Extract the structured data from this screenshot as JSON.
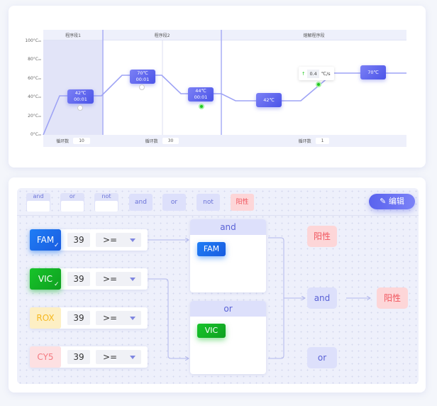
{
  "program": {
    "y_ticks": [
      "100°C",
      "80°C",
      "60°C",
      "40°C",
      "20°C",
      "0°C"
    ],
    "stages": [
      {
        "title": "程序段1",
        "cycle_label": "循环数",
        "cycles": "10"
      },
      {
        "title": "程序段2",
        "cycle_label": "循环数",
        "cycles": "30"
      },
      {
        "title": "熔解程序段",
        "cycle_label": "循环数",
        "cycles": "1"
      }
    ],
    "steps": [
      {
        "temp": "42℃",
        "time": "00:01"
      },
      {
        "temp": "70℃",
        "time": "00:01"
      },
      {
        "temp": "44℃",
        "time": "00:01"
      },
      {
        "temp": "42℃"
      },
      {
        "temp": "70℃"
      }
    ],
    "rate": {
      "value": "0.4",
      "unit": "℃/s"
    }
  },
  "logic": {
    "palette_empty": [
      "and",
      "or",
      "not"
    ],
    "palette_filled": [
      "and",
      "or",
      "not",
      "阳性"
    ],
    "edit_label": "编辑",
    "channels": [
      {
        "name": "FAM",
        "ct": "39",
        "op": ">=",
        "color": "#1f7df5",
        "checked": true
      },
      {
        "name": "VIC",
        "ct": "39",
        "op": ">=",
        "color": "#17c42a",
        "checked": true
      },
      {
        "name": "ROX",
        "ct": "39",
        "op": ">=",
        "color": "#f5b820",
        "checked": false
      },
      {
        "name": "CY5",
        "ct": "39",
        "op": ">=",
        "color": "#f47b82",
        "checked": false
      }
    ],
    "groups": [
      {
        "title": "and",
        "items": [
          "FAM"
        ]
      },
      {
        "title": "or",
        "items": [
          "VIC"
        ]
      }
    ],
    "outputs": {
      "positive": "阳性",
      "and": "and",
      "or": "or",
      "result": "阳性"
    }
  }
}
